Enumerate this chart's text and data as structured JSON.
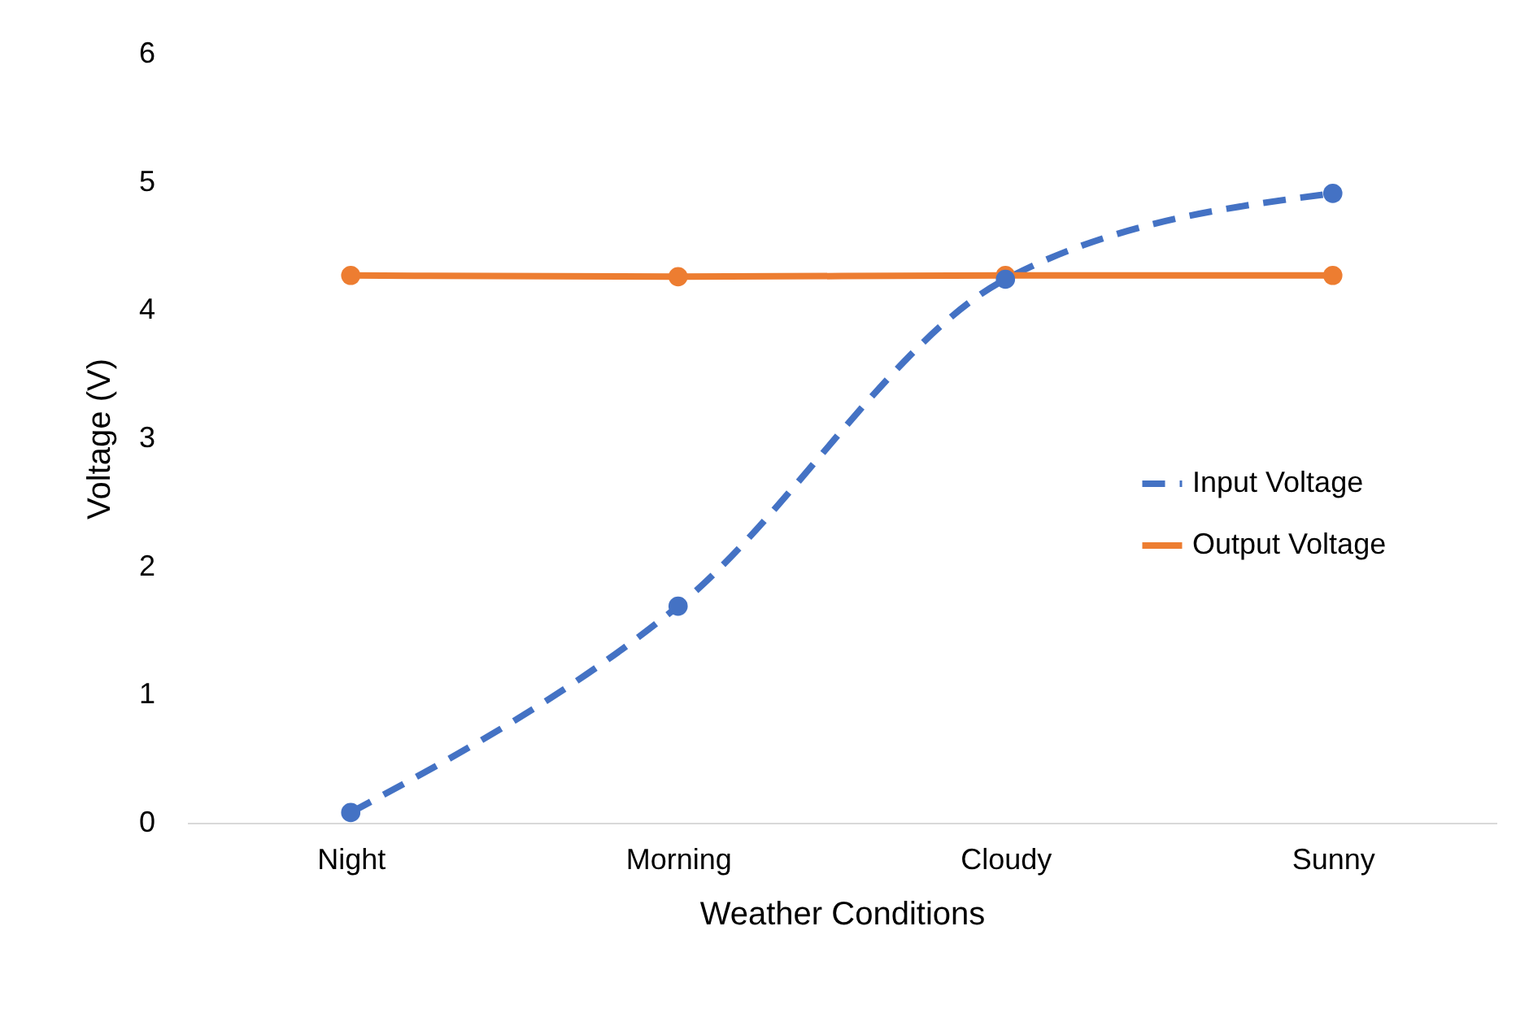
{
  "chart_data": {
    "type": "line",
    "xlabel": "Weather Conditions",
    "ylabel": "Voltage (V)",
    "categories": [
      "Night",
      "Morning",
      "Cloudy",
      "Sunny"
    ],
    "series": [
      {
        "name": "Input Voltage",
        "color": "#4472c4",
        "line_style": "dashed",
        "values": [
          0.08,
          1.69,
          4.24,
          4.91
        ]
      },
      {
        "name": "Output Voltage",
        "color": "#ed7d31",
        "line_style": "solid",
        "values": [
          4.27,
          4.26,
          4.27,
          4.27
        ]
      }
    ],
    "ylim": [
      0,
      6
    ],
    "yticks": [
      0,
      1,
      2,
      3,
      4,
      5,
      6
    ],
    "grid": false,
    "legend": "right",
    "marker": "circle"
  }
}
